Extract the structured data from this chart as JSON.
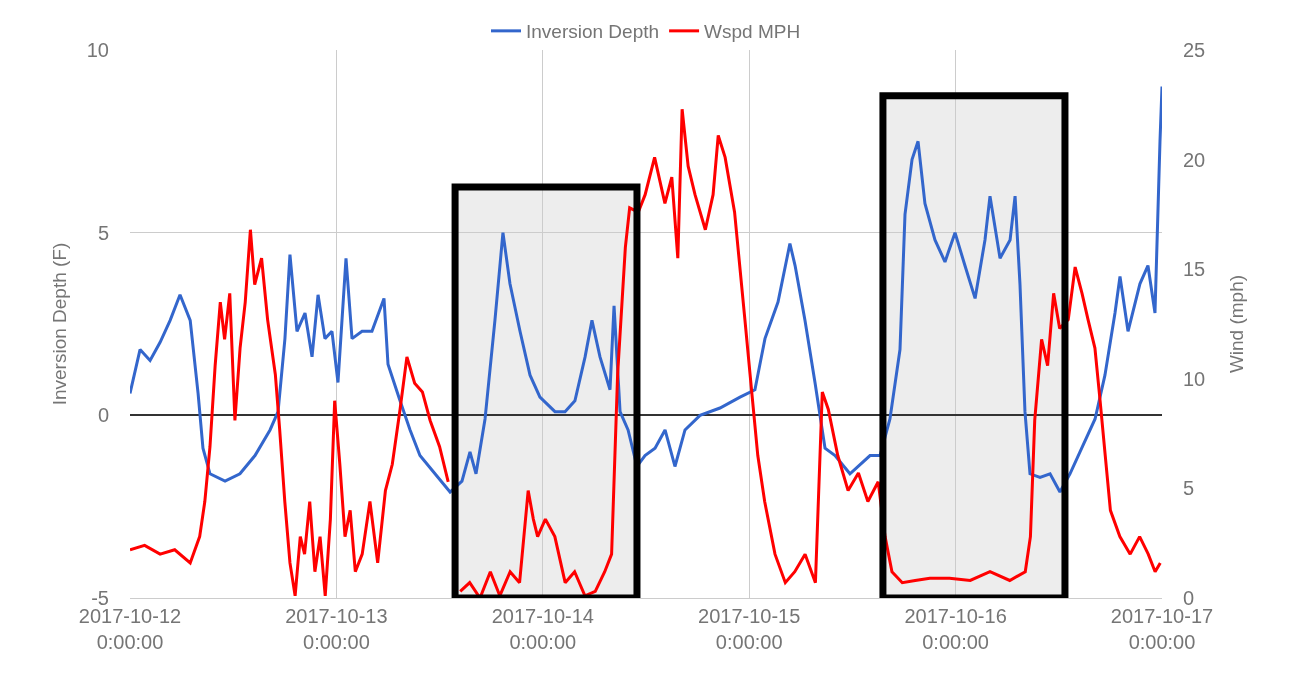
{
  "chart_data": {
    "type": "line",
    "xlabel": null,
    "ylabel": "Inversion Depth (F)",
    "y2label": "Wind (mph)",
    "xlim": [
      "2017-10-12",
      "2017-10-17"
    ],
    "xticks": [
      {
        "value": "2017-10-12",
        "label": "2017-10-12\n0:00:00"
      },
      {
        "value": "2017-10-13",
        "label": "2017-10-13\n0:00:00"
      },
      {
        "value": "2017-10-14",
        "label": "2017-10-14\n0:00:00"
      },
      {
        "value": "2017-10-15",
        "label": "2017-10-15\n0:00:00"
      },
      {
        "value": "2017-10-16",
        "label": "2017-10-16\n0:00:00"
      },
      {
        "value": "2017-10-17",
        "label": "2017-10-17\n0:00:00"
      }
    ],
    "ylim": [
      -5,
      10
    ],
    "yticks": [
      -5,
      0,
      5,
      10
    ],
    "y2lim": [
      0,
      25
    ],
    "y2ticks": [
      0,
      5,
      10,
      15,
      20,
      25
    ],
    "grid": true,
    "legend": "top",
    "marker": "none",
    "line_style": "solid",
    "bands": [
      {
        "axis": "x",
        "from": "2017-10-13T13:48",
        "to": "2017-10-14T10:57",
        "color": "#000000"
      },
      {
        "axis": "x",
        "from": "2017-10-15T15:33",
        "to": "2017-10-16T12:43",
        "color": "#000000"
      }
    ],
    "series": [
      {
        "name": "Inversion Depth",
        "color": "#3366cc",
        "x": [
          "2017-10-12T00:00",
          "2017-10-12T01:10",
          "2017-10-12T02:20",
          "2017-10-12T03:30",
          "2017-10-12T04:40",
          "2017-10-12T05:49",
          "2017-10-12T07:00",
          "2017-10-12T07:55",
          "2017-10-12T08:29",
          "2017-10-12T09:18",
          "2017-10-12T11:03",
          "2017-10-12T12:47",
          "2017-10-12T14:32",
          "2017-10-12T16:17",
          "2017-10-12T17:13",
          "2017-10-12T18:01",
          "2017-10-12T18:36",
          "2017-10-12T19:25",
          "2017-10-12T20:21",
          "2017-10-12T21:10",
          "2017-10-12T21:52",
          "2017-10-12T22:40",
          "2017-10-12T23:29",
          "2017-10-13T00:11",
          "2017-10-13T01:07",
          "2017-10-13T01:49",
          "2017-10-13T02:59",
          "2017-10-13T04:08",
          "2017-10-13T05:32",
          "2017-10-13T06:00",
          "2017-10-13T07:24",
          "2017-10-13T08:34",
          "2017-10-13T09:43",
          "2017-10-13T11:28",
          "2017-10-13T13:13",
          "2017-10-13T14:36",
          "2017-10-13T15:32",
          "2017-10-13T16:14",
          "2017-10-13T17:17",
          "2017-10-13T18:26",
          "2017-10-13T19:22",
          "2017-10-13T20:11",
          "2017-10-13T21:21",
          "2017-10-13T22:31",
          "2017-10-13T23:40",
          "2017-10-14T01:25",
          "2017-10-14T02:35",
          "2017-10-14T03:44",
          "2017-10-14T04:55",
          "2017-10-14T05:43",
          "2017-10-14T06:39",
          "2017-10-14T07:49",
          "2017-10-14T08:17",
          "2017-10-14T08:59",
          "2017-10-14T09:55",
          "2017-10-14T10:57",
          "2017-10-14T11:53",
          "2017-10-14T13:03",
          "2017-10-14T14:13",
          "2017-10-14T15:22",
          "2017-10-14T16:32",
          "2017-10-14T18:17",
          "2017-10-14T20:36",
          "2017-10-14T22:56",
          "2017-10-15T00:40",
          "2017-10-15T01:50",
          "2017-10-15T03:21",
          "2017-10-15T04:44",
          "2017-10-15T05:20",
          "2017-10-15T06:29",
          "2017-10-15T07:39",
          "2017-10-15T08:49",
          "2017-10-15T09:59",
          "2017-10-15T11:43",
          "2017-10-15T14:03",
          "2017-10-15T15:13",
          "2017-10-15T16:22",
          "2017-10-15T17:32",
          "2017-10-15T18:07",
          "2017-10-15T18:56",
          "2017-10-15T19:38",
          "2017-10-15T20:26",
          "2017-10-15T21:36",
          "2017-10-15T22:46",
          "2017-10-15T23:56",
          "2017-10-16T01:05",
          "2017-10-16T02:16",
          "2017-10-16T03:25",
          "2017-10-16T04:00",
          "2017-10-16T05:10",
          "2017-10-16T06:20",
          "2017-10-16T06:55",
          "2017-10-16T07:29",
          "2017-10-16T08:04",
          "2017-10-16T08:39",
          "2017-10-16T09:49",
          "2017-10-16T10:59",
          "2017-10-16T12:08",
          "2017-10-16T13:18",
          "2017-10-16T14:28",
          "2017-10-16T16:13",
          "2017-10-16T17:22",
          "2017-10-16T18:32",
          "2017-10-16T19:07",
          "2017-10-16T20:03",
          "2017-10-16T21:26",
          "2017-10-16T22:22",
          "2017-10-16T23:11",
          "2017-10-16T23:46",
          "2017-10-17T00:00"
        ],
        "values": [
          0.6,
          1.8,
          1.5,
          2.0,
          2.6,
          3.3,
          2.6,
          0.6,
          -0.9,
          -1.6,
          -1.8,
          -1.6,
          -1.1,
          -0.4,
          0.1,
          2.1,
          4.4,
          2.3,
          2.8,
          1.6,
          3.3,
          2.1,
          2.3,
          0.9,
          4.3,
          2.1,
          2.3,
          2.3,
          3.2,
          1.4,
          0.4,
          -0.4,
          -1.1,
          -1.6,
          -2.1,
          -1.8,
          -1.0,
          -1.6,
          -0.1,
          2.6,
          5.0,
          3.6,
          2.3,
          1.1,
          0.5,
          0.1,
          0.1,
          0.4,
          1.6,
          2.6,
          1.6,
          0.7,
          3.0,
          0.1,
          -0.4,
          -1.4,
          -1.1,
          -0.9,
          -0.4,
          -1.4,
          -0.4,
          0.0,
          0.2,
          0.5,
          0.7,
          2.1,
          3.1,
          4.7,
          4.1,
          2.6,
          0.9,
          -0.9,
          -1.1,
          -1.6,
          -1.1,
          -1.1,
          -0.1,
          1.8,
          5.5,
          7.0,
          7.5,
          5.8,
          4.8,
          4.2,
          5.0,
          4.1,
          3.2,
          4.8,
          6.0,
          4.3,
          4.8,
          6.0,
          3.6,
          0.1,
          -1.6,
          -1.7,
          -1.6,
          -2.1,
          -1.6,
          -1.0,
          -0.1,
          1.1,
          2.8,
          3.8,
          2.3,
          3.6,
          4.1,
          2.8,
          7.5,
          9.0
        ]
      },
      {
        "name": "Wspd MPH",
        "color": "#ff0000",
        "axis": "y2",
        "x": [
          "2017-10-12T00:00",
          "2017-10-12T01:42",
          "2017-10-12T03:30",
          "2017-10-12T05:12",
          "2017-10-12T07:00",
          "2017-10-12T08:06",
          "2017-10-12T08:42",
          "2017-10-12T09:18",
          "2017-10-12T09:54",
          "2017-10-12T10:30",
          "2017-10-12T11:00",
          "2017-10-12T11:36",
          "2017-10-12T12:12",
          "2017-10-12T12:48",
          "2017-10-12T13:24",
          "2017-10-12T14:00",
          "2017-10-12T14:30",
          "2017-10-12T15:18",
          "2017-10-12T16:00",
          "2017-10-12T16:54",
          "2017-10-12T17:24",
          "2017-10-12T18:00",
          "2017-10-12T18:36",
          "2017-10-12T19:12",
          "2017-10-12T19:48",
          "2017-10-12T20:18",
          "2017-10-12T20:54",
          "2017-10-12T21:30",
          "2017-10-12T22:06",
          "2017-10-12T22:42",
          "2017-10-12T23:18",
          "2017-10-12T23:48",
          "2017-10-13T00:24",
          "2017-10-13T01:00",
          "2017-10-13T01:36",
          "2017-10-13T02:12",
          "2017-10-13T03:00",
          "2017-10-13T03:54",
          "2017-10-13T04:48",
          "2017-10-13T05:42",
          "2017-10-13T06:30",
          "2017-10-13T07:24",
          "2017-10-13T08:12",
          "2017-10-13T09:06",
          "2017-10-13T10:00",
          "2017-10-13T10:54",
          "2017-10-13T12:00",
          "2017-10-13T13:00",
          "2017-10-13T13:48",
          "2017-10-13T14:24",
          "2017-10-13T15:30",
          "2017-10-13T16:42",
          "2017-10-13T17:54",
          "2017-10-13T19:00",
          "2017-10-13T20:12",
          "2017-10-13T21:18",
          "2017-10-13T22:18",
          "2017-10-13T22:54",
          "2017-10-13T23:24",
          "2017-10-14T00:18",
          "2017-10-14T01:24",
          "2017-10-14T02:36",
          "2017-10-14T03:42",
          "2017-10-14T04:54",
          "2017-10-14T06:06",
          "2017-10-14T07:12",
          "2017-10-14T08:00",
          "2017-10-14T08:42",
          "2017-10-14T09:36",
          "2017-10-14T10:06",
          "2017-10-14T11:06",
          "2017-10-14T11:54",
          "2017-10-14T13:00",
          "2017-10-14T14:12",
          "2017-10-14T15:00",
          "2017-10-14T15:42",
          "2017-10-14T16:12",
          "2017-10-14T16:54",
          "2017-10-14T17:42",
          "2017-10-14T18:54",
          "2017-10-14T19:48",
          "2017-10-14T20:24",
          "2017-10-14T21:12",
          "2017-10-14T22:18",
          "2017-10-14T23:30",
          "2017-10-15T00:06",
          "2017-10-15T01:00",
          "2017-10-15T01:48",
          "2017-10-15T03:00",
          "2017-10-15T04:12",
          "2017-10-15T05:18",
          "2017-10-15T06:30",
          "2017-10-15T07:42",
          "2017-10-15T08:30",
          "2017-10-15T09:12",
          "2017-10-15T10:18",
          "2017-10-15T11:30",
          "2017-10-15T12:42",
          "2017-10-15T13:48",
          "2017-10-15T15:00",
          "2017-10-15T15:48",
          "2017-10-15T16:36",
          "2017-10-15T17:48",
          "2017-10-15T19:18",
          "2017-10-15T21:00",
          "2017-10-15T23:18",
          "2017-10-16T01:42",
          "2017-10-16T04:00",
          "2017-10-16T06:18",
          "2017-10-16T08:06",
          "2017-10-16T08:42",
          "2017-10-16T09:12",
          "2017-10-16T10:00",
          "2017-10-16T10:42",
          "2017-10-16T11:24",
          "2017-10-16T12:06",
          "2017-10-16T13:06",
          "2017-10-16T13:54",
          "2017-10-16T14:42",
          "2017-10-16T15:24",
          "2017-10-16T16:12",
          "2017-10-16T16:48",
          "2017-10-16T17:24",
          "2017-10-16T18:00",
          "2017-10-16T19:06",
          "2017-10-16T20:18",
          "2017-10-16T21:24",
          "2017-10-16T22:24",
          "2017-10-16T23:12",
          "2017-10-16T23:48"
        ],
        "values": [
          2.2,
          2.4,
          2.0,
          2.2,
          1.6,
          2.8,
          4.4,
          6.9,
          10.6,
          13.5,
          11.8,
          13.9,
          8.1,
          11.4,
          13.5,
          16.8,
          14.3,
          15.5,
          12.7,
          10.2,
          7.7,
          4.4,
          1.6,
          0.1,
          2.8,
          2.0,
          4.4,
          1.2,
          2.8,
          0.1,
          3.6,
          9.0,
          6.1,
          2.8,
          4.0,
          1.2,
          2.0,
          4.4,
          1.6,
          4.9,
          6.1,
          8.6,
          11.0,
          9.8,
          9.4,
          8.1,
          6.9,
          5.3,
          null,
          0.3,
          0.7,
          0,
          1.2,
          0.1,
          1.2,
          0.7,
          4.9,
          3.6,
          2.8,
          3.6,
          2.8,
          0.7,
          1.2,
          0.1,
          0.3,
          1.2,
          2.0,
          10.2,
          16.0,
          17.8,
          17.6,
          18.4,
          20.1,
          18.0,
          19.2,
          15.5,
          22.3,
          19.7,
          18.4,
          16.8,
          18.4,
          21.1,
          20.1,
          17.6,
          12.7,
          10.2,
          6.5,
          4.4,
          2.0,
          0.7,
          1.2,
          2.0,
          0.7,
          9.4,
          8.6,
          6.5,
          4.9,
          5.7,
          4.4,
          5.3,
          2.8,
          1.2,
          0.7,
          0.8,
          0.9,
          0.9,
          0.8,
          1.2,
          0.8,
          1.2,
          2.8,
          8.1,
          11.8,
          10.6,
          13.9,
          12.3,
          12.7,
          15.1,
          13.9,
          12.7,
          11.4,
          9.0,
          6.5,
          4.0,
          2.8,
          2.0,
          2.8,
          2.0,
          1.2,
          1.6
        ]
      }
    ]
  }
}
